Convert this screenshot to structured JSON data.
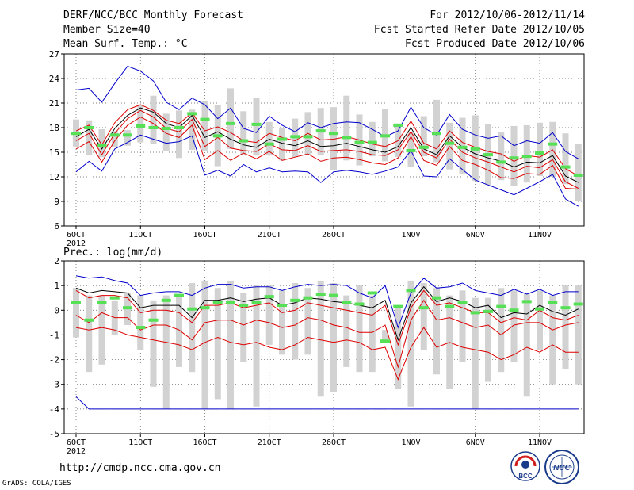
{
  "header": {
    "title": "DERF/NCC/BCC Monthly Forecast",
    "member_size": "Member Size=40",
    "variable1": "Mean Surf. Temp.: °C",
    "forecast_period": "For 2012/10/06-2012/11/14",
    "started_date": "Fcst Started Refer Date 2012/10/05",
    "produced_date": "Fcst Produced Date 2012/10/06"
  },
  "footer": {
    "url": "http://cmdp.ncc.cma.gov.cn",
    "credit": "GrADS: COLA/IGES",
    "logo1_text": "BCC",
    "logo2_text": "NCC"
  },
  "colors": {
    "envelope": "#0000cc",
    "percentile": "#dd0000",
    "mean": "#000000",
    "bar": "#d2d2d2",
    "marker": "#55e055",
    "grid": "#555555"
  },
  "chart_data": [
    {
      "type": "line",
      "title": "Mean Surf. Temp.: °C",
      "x_tick_labels": [
        "6OCT",
        "11OCT",
        "16OCT",
        "21OCT",
        "26OCT",
        "1NOV",
        "6NOV",
        "11NOV"
      ],
      "x_year_label": "2012",
      "n_days": 40,
      "ylim": [
        6,
        27
      ],
      "yticks": [
        6,
        9,
        12,
        15,
        18,
        21,
        24,
        27
      ],
      "series": [
        {
          "name": "max",
          "values": [
            22.6,
            22.8,
            21.1,
            23.4,
            25.5,
            24.9,
            23.7,
            21.1,
            20.2,
            21.6,
            20.8,
            19.1,
            20.4,
            17.9,
            17.4,
            19.4,
            18.3,
            17.5,
            18.6,
            18.0,
            18.5,
            18.7,
            18.6,
            17.8,
            16.9,
            17.6,
            20.5,
            18.0,
            17.1,
            19.6,
            17.8,
            17.1,
            16.7,
            17.0,
            15.8,
            16.4,
            16.1,
            17.4,
            15.1,
            14.2
          ]
        },
        {
          "name": "p90",
          "values": [
            17.6,
            18.3,
            15.9,
            18.6,
            20.2,
            20.8,
            20.1,
            18.9,
            18.5,
            19.8,
            17.6,
            18.1,
            17.4,
            16.4,
            16.2,
            17.3,
            16.8,
            16.4,
            17.3,
            16.5,
            16.6,
            16.9,
            16.5,
            16.0,
            15.7,
            16.4,
            18.8,
            16.1,
            15.4,
            17.6,
            16.2,
            15.6,
            15.1,
            14.8,
            13.9,
            14.6,
            14.4,
            15.3,
            13.0,
            12.1
          ]
        },
        {
          "name": "mean",
          "values": [
            16.9,
            17.8,
            15.4,
            17.9,
            19.5,
            20.4,
            19.9,
            18.5,
            18.0,
            19.5,
            16.8,
            17.5,
            16.6,
            15.9,
            15.6,
            16.6,
            16.1,
            15.8,
            16.4,
            15.7,
            15.8,
            16.1,
            15.7,
            15.3,
            15.0,
            15.7,
            18.0,
            15.4,
            14.7,
            17.0,
            15.6,
            14.8,
            14.3,
            13.9,
            13.2,
            13.8,
            13.7,
            14.6,
            12.1,
            11.3
          ]
        },
        {
          "name": "p10",
          "values": [
            16.4,
            17.3,
            14.7,
            17.3,
            19.1,
            20.1,
            19.3,
            17.9,
            17.5,
            19.0,
            15.7,
            16.8,
            15.5,
            15.2,
            15.1,
            16.0,
            15.3,
            15.2,
            15.8,
            15.1,
            15.2,
            15.3,
            15.1,
            14.7,
            14.6,
            15.3,
            17.5,
            15.0,
            14.3,
            16.6,
            15.0,
            14.3,
            13.8,
            13.2,
            12.6,
            13.3,
            13.1,
            14.1,
            11.4,
            10.6
          ]
        },
        {
          "name": "p25",
          "values": [
            15.4,
            16.3,
            13.8,
            16.4,
            18.3,
            19.3,
            18.5,
            17.3,
            16.8,
            18.3,
            14.1,
            15.2,
            14.0,
            14.9,
            14.2,
            15.1,
            14.0,
            14.4,
            14.8,
            13.9,
            14.3,
            14.4,
            14.1,
            13.7,
            13.5,
            14.3,
            16.9,
            14.0,
            13.4,
            15.7,
            14.0,
            13.5,
            12.8,
            11.9,
            11.8,
            12.4,
            12.3,
            13.4,
            10.6,
            10.5
          ]
        },
        {
          "name": "min",
          "values": [
            12.6,
            13.9,
            12.7,
            15.4,
            16.2,
            17.1,
            16.6,
            16.1,
            16.3,
            17.0,
            12.2,
            12.8,
            12.1,
            13.5,
            12.6,
            13.1,
            12.6,
            12.7,
            12.6,
            11.3,
            12.6,
            12.8,
            12.6,
            12.3,
            12.7,
            13.2,
            15.2,
            12.1,
            12.0,
            14.2,
            12.9,
            11.6,
            11.0,
            10.4,
            9.8,
            10.6,
            11.4,
            12.3,
            9.3,
            8.4
          ]
        },
        {
          "name": "observed",
          "values": [
            17.3,
            18.0,
            15.8,
            17.1,
            17.1,
            18.2,
            18.0,
            17.9,
            18.0,
            19.7,
            19.0,
            17.0,
            18.5,
            16.4,
            18.4,
            16.0,
            16.6,
            16.9,
            16.9,
            17.6,
            17.3,
            16.8,
            16.2,
            16.2,
            17.0,
            18.3,
            15.2,
            15.6,
            17.3,
            16.1,
            15.6,
            15.4,
            14.7,
            13.8,
            14.3,
            14.5,
            14.9,
            16.0,
            13.2,
            12.2
          ]
        },
        {
          "name": "box_upper",
          "values": [
            19.0,
            18.9,
            17.8,
            17.6,
            17.7,
            20.7,
            21.9,
            19.7,
            20.1,
            20.2,
            21.2,
            20.8,
            22.8,
            20.0,
            21.6,
            18.7,
            18.0,
            19.1,
            19.9,
            20.4,
            20.5,
            21.9,
            19.6,
            18.7,
            20.3,
            18.5,
            17.5,
            19.4,
            21.4,
            18.6,
            19.2,
            19.5,
            18.4,
            17.5,
            18.2,
            18.3,
            18.6,
            18.7,
            17.3,
            16.0
          ]
        },
        {
          "name": "box_lower",
          "values": [
            15.7,
            14.7,
            14.4,
            15.6,
            15.8,
            16.2,
            16.0,
            15.2,
            14.3,
            15.3,
            15.2,
            13.3,
            15.4,
            14.6,
            14.6,
            14.6,
            14.0,
            14.4,
            14.7,
            14.6,
            12.8,
            14.0,
            13.4,
            14.5,
            13.9,
            14.4,
            13.2,
            14.5,
            13.8,
            12.9,
            12.4,
            11.5,
            11.0,
            11.6,
            10.9,
            11.3,
            12.1,
            12.0,
            11.1,
            9.0
          ]
        }
      ]
    },
    {
      "type": "line",
      "title": "Prec.: log(mm/d)",
      "x_tick_labels": [
        "6OCT",
        "11OCT",
        "16OCT",
        "21OCT",
        "26OCT",
        "1NOV",
        "6NOV",
        "11NOV"
      ],
      "x_year_label": "2012",
      "n_days": 40,
      "ylim": [
        -5,
        2
      ],
      "yticks": [
        -5,
        -4,
        -3,
        -2,
        -1,
        0,
        1,
        2
      ],
      "series": [
        {
          "name": "max",
          "values": [
            1.4,
            1.3,
            1.35,
            1.2,
            1.1,
            0.6,
            0.7,
            0.75,
            0.75,
            0.6,
            0.9,
            1.05,
            1.05,
            0.9,
            0.95,
            0.95,
            0.8,
            0.95,
            1.05,
            1.0,
            1.05,
            1.0,
            0.7,
            0.5,
            1.0,
            -0.7,
            0.7,
            1.3,
            0.9,
            0.95,
            1.1,
            0.8,
            0.7,
            0.6,
            0.85,
            0.65,
            0.85,
            0.6,
            0.75,
            0.75
          ]
        },
        {
          "name": "mean",
          "values": [
            0.9,
            0.7,
            0.8,
            0.75,
            0.7,
            0.1,
            0.2,
            0.2,
            0.2,
            -0.3,
            0.4,
            0.4,
            0.5,
            0.35,
            0.45,
            0.5,
            0.2,
            0.3,
            0.5,
            0.45,
            0.35,
            0.3,
            0.2,
            0.1,
            0.4,
            -1.2,
            0.3,
            0.95,
            0.35,
            0.5,
            0.35,
            0.1,
            0.2,
            -0.3,
            -0.1,
            -0.15,
            0.2,
            -0.05,
            -0.2,
            0.05
          ]
        },
        {
          "name": "p75",
          "values": [
            0.8,
            0.5,
            0.6,
            0.6,
            0.5,
            -0.1,
            0.0,
            0.0,
            -0.1,
            -0.5,
            0.2,
            0.2,
            0.3,
            0.1,
            0.2,
            0.3,
            -0.1,
            0.0,
            0.3,
            0.2,
            0.1,
            0.0,
            -0.1,
            -0.2,
            0.2,
            -1.4,
            0.1,
            0.8,
            0.2,
            0.3,
            0.1,
            -0.1,
            -0.1,
            -0.5,
            -0.3,
            -0.4,
            0.0,
            -0.3,
            -0.4,
            -0.2
          ]
        },
        {
          "name": "p25",
          "values": [
            -0.2,
            -0.5,
            -0.1,
            -0.3,
            -0.3,
            -0.8,
            -0.6,
            -0.6,
            -0.8,
            -1.2,
            -0.5,
            -0.4,
            -0.4,
            -0.6,
            -0.4,
            -0.5,
            -0.7,
            -0.6,
            -0.3,
            -0.4,
            -0.6,
            -0.7,
            -0.9,
            -0.9,
            -0.6,
            -2.3,
            -0.4,
            0.4,
            -0.4,
            -0.3,
            -0.5,
            -0.7,
            -0.6,
            -1.0,
            -0.6,
            -0.5,
            -0.5,
            -0.8,
            -0.6,
            -0.5
          ]
        },
        {
          "name": "p10",
          "values": [
            -0.7,
            -0.8,
            -0.7,
            -0.8,
            -1.0,
            -1.1,
            -1.2,
            -1.3,
            -1.4,
            -1.6,
            -1.3,
            -1.1,
            -1.3,
            -1.4,
            -1.3,
            -1.5,
            -1.6,
            -1.4,
            -1.1,
            -1.2,
            -1.3,
            -1.2,
            -1.3,
            -1.6,
            -1.5,
            -2.8,
            -1.5,
            -0.7,
            -1.5,
            -1.3,
            -1.5,
            -1.6,
            -1.7,
            -2.0,
            -1.8,
            -1.5,
            -1.7,
            -1.4,
            -1.7,
            -1.7
          ]
        },
        {
          "name": "min",
          "values": [
            -3.5,
            -4,
            -4,
            -4,
            -4,
            -4,
            -4,
            -4,
            -4,
            -4,
            -4,
            -4,
            -4,
            -4,
            -4,
            -4,
            -4,
            -4,
            -4,
            -4,
            -4,
            -4,
            -4,
            -4,
            -4,
            -4,
            -4,
            -4,
            -4,
            -4,
            -4,
            -4,
            -4,
            -4,
            -4,
            -4,
            -4,
            -4,
            -4,
            -4
          ]
        },
        {
          "name": "observed",
          "values": [
            0.3,
            -0.4,
            0.3,
            0.5,
            0.1,
            -0.7,
            -0.4,
            0.4,
            0.6,
            0.05,
            0.1,
            0.3,
            0.3,
            0.2,
            0.3,
            0.55,
            0.2,
            0.4,
            0.5,
            0.65,
            0.6,
            0.3,
            0.25,
            0.7,
            -1.25,
            0.15,
            0.8,
            0.1,
            0.5,
            0.15,
            0.3,
            -0.1,
            -0.05,
            0.15,
            0.0,
            0.35,
            0.05,
            0.3,
            0.1,
            0.25
          ]
        },
        {
          "name": "box_upper",
          "values": [
            0.9,
            0.6,
            0.6,
            0.4,
            0.7,
            0.6,
            0.4,
            0.6,
            0.6,
            1.1,
            1.2,
            0.9,
            1.2,
            0.7,
            1.0,
            1.0,
            0.8,
            1.1,
            0.9,
            1.2,
            1.1,
            0.6,
            1.0,
            0.6,
            -0.8,
            0.2,
            1.2,
            1.1,
            0.9,
            0.6,
            0.8,
            0.5,
            0.5,
            0.9,
            0.8,
            0.7,
            0.8,
            0.6,
            1.0,
            1.0
          ]
        },
        {
          "name": "box_lower",
          "values": [
            -1.1,
            -2.5,
            -2.2,
            -1.0,
            -0.6,
            -1.6,
            -3.1,
            -4.0,
            -2.3,
            -2.5,
            -4.0,
            -3.6,
            -4.0,
            -2.1,
            -3.9,
            -1.4,
            -1.8,
            -2.0,
            -1.8,
            -3.5,
            -3.3,
            -2.3,
            -2.5,
            -2.5,
            -1.3,
            -3.2,
            -3.9,
            -1.6,
            -2.6,
            -3.2,
            -2.1,
            -4.0,
            -2.9,
            -2.5,
            -2.1,
            -3.5,
            -1.6,
            -3.0,
            -2.4,
            -3.0
          ]
        }
      ]
    }
  ]
}
